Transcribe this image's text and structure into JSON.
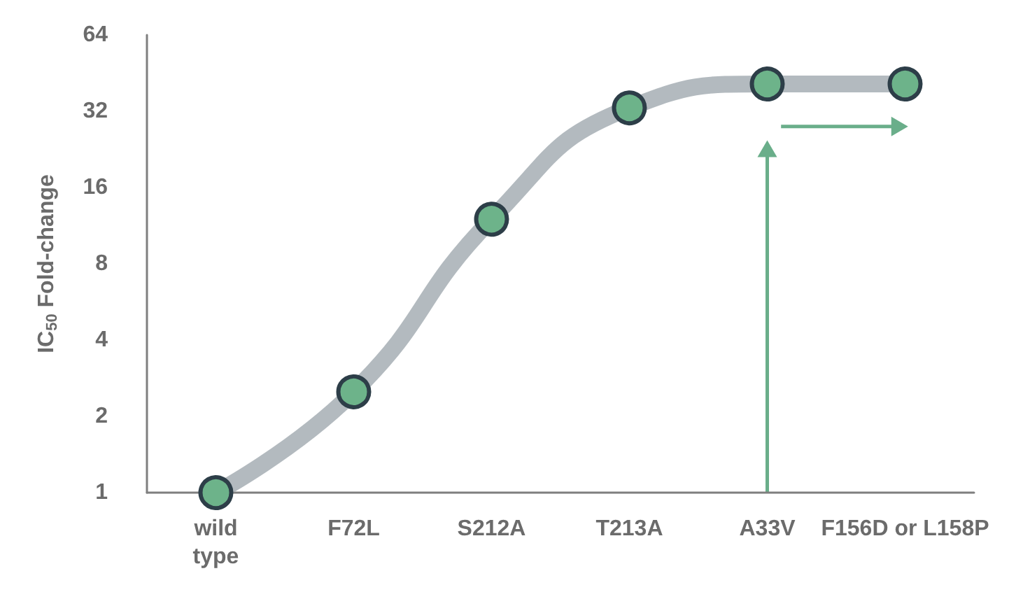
{
  "chart_data": {
    "type": "line",
    "ylabel": "IC$_{50}$ Fold-change",
    "categories": [
      "wild\ntype",
      "F72L",
      "S212A",
      "T213A",
      "A33V",
      "F156D or L158P"
    ],
    "series": [
      {
        "color": "#6db38a",
        "values": [
          1,
          2.5,
          12,
          33,
          41,
          41
        ]
      }
    ],
    "log": "y",
    "ylim": [
      1,
      64
    ],
    "yticks": [
      1,
      2,
      4,
      8,
      16,
      32,
      64
    ],
    "grid": false,
    "marker": "circle",
    "line_style": "solid"
  }
}
